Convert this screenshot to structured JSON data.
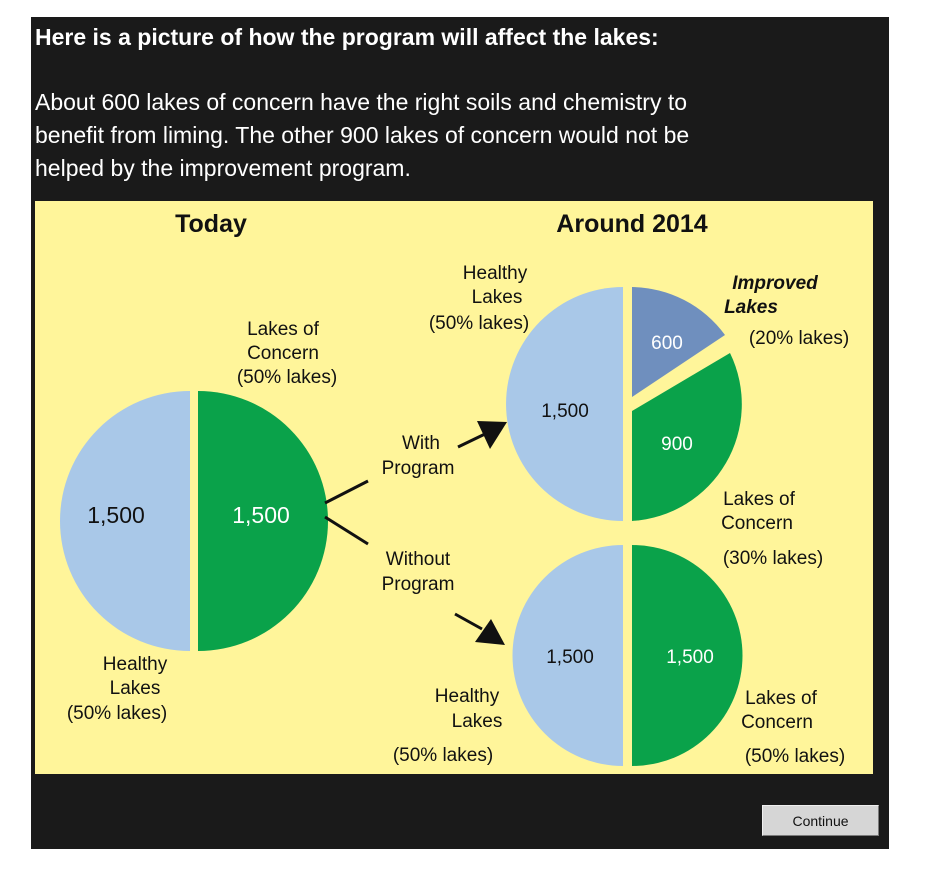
{
  "heading": "Here is a picture of how the program will affect the lakes:",
  "intro": [
    "About 600 lakes of concern have the right soils and chemistry to",
    "benefit from liming. The other 900 lakes of concern would not be",
    "helped by the improvement program."
  ],
  "figure": {
    "today_title": "Today",
    "future_title": "Around 2014",
    "today": {
      "healthy_value": "1,500",
      "concern_value": "1,500",
      "concern_label": [
        "Lakes of",
        "Concern",
        "(50% lakes)"
      ],
      "healthy_label": [
        "Healthy",
        "Lakes",
        "(50% lakes)"
      ]
    },
    "with_program_label": [
      "With",
      "Program"
    ],
    "without_program_label": [
      "Without",
      "Program"
    ],
    "with_program": {
      "healthy_value": "1,500",
      "improved_value": "600",
      "concern_value": "900",
      "healthy_label": [
        "Healthy",
        "Lakes",
        "(50% lakes)"
      ],
      "improved_label": [
        "Improved",
        "Lakes",
        "(20% lakes)"
      ],
      "concern_label": [
        "Lakes of",
        "Concern",
        "(30% lakes)"
      ]
    },
    "without_program": {
      "healthy_value": "1,500",
      "concern_value": "1,500",
      "healthy_label": [
        "Healthy",
        "Lakes",
        "(50% lakes)"
      ],
      "concern_label": [
        "Lakes of",
        "Concern",
        "(50% lakes)"
      ]
    },
    "colors": {
      "healthy": "#a9c8e8",
      "concern": "#0aa24a",
      "improved": "#6f8fbe",
      "background": "#fff59a"
    }
  },
  "continue_label": "Continue"
}
